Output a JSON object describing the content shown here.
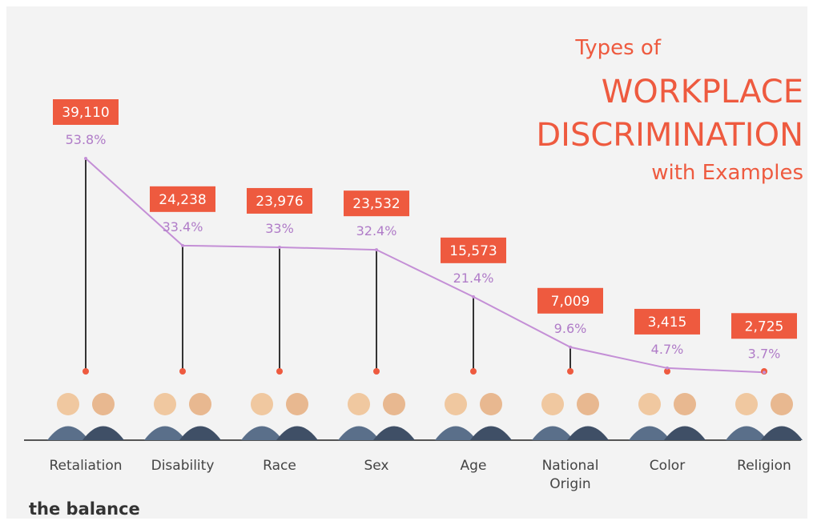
{
  "chart_data": {
    "type": "line",
    "title": [
      "Types of",
      "WORKPLACE",
      "DISCRIMINATION",
      "with Examples"
    ],
    "categories": [
      "Retaliation",
      "Disability",
      "Race",
      "Sex",
      "Age",
      "National Origin",
      "Color",
      "Religion"
    ],
    "values": [
      53.8,
      33.4,
      33,
      32.4,
      21.4,
      9.6,
      4.7,
      3.7
    ],
    "value_labels": [
      "53.8%",
      "33.4%",
      "33%",
      "32.4%",
      "21.4%",
      "9.6%",
      "4.7%",
      "3.7%"
    ],
    "counts": [
      39110,
      24238,
      23976,
      23532,
      15573,
      7009,
      3415,
      2725
    ],
    "count_labels": [
      "39,110",
      "24,238",
      "23,976",
      "23,532",
      "15,573",
      "7,009",
      "3,415",
      "2,725"
    ],
    "color": "#c48fd6",
    "count_color": "#ee5a3f",
    "source": "the balance"
  }
}
